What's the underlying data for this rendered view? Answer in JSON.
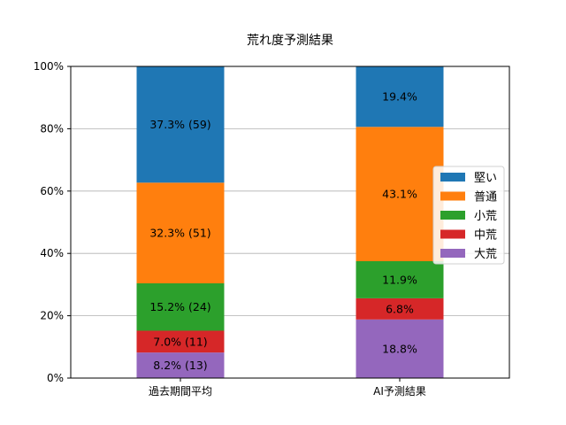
{
  "chart_data": {
    "type": "bar",
    "stacked": true,
    "title": "荒れ度予測結果",
    "xlabel": "",
    "ylabel": "",
    "categories": [
      "過去期間平均",
      "AI予測結果"
    ],
    "ylim": [
      0,
      100
    ],
    "yticks": [
      "0%",
      "20%",
      "40%",
      "60%",
      "80%",
      "100%"
    ],
    "grid": "y",
    "legend_position": "center-right",
    "series": [
      {
        "name": "大荒",
        "color": "#9467bd",
        "values": [
          8.2,
          18.8
        ],
        "labels": [
          "8.2% (13)",
          "18.8%"
        ]
      },
      {
        "name": "中荒",
        "color": "#d62728",
        "values": [
          7.0,
          6.8
        ],
        "labels": [
          "7.0% (11)",
          "6.8%"
        ]
      },
      {
        "name": "小荒",
        "color": "#2ca02c",
        "values": [
          15.2,
          11.9
        ],
        "labels": [
          "15.2% (24)",
          "11.9%"
        ]
      },
      {
        "name": "普通",
        "color": "#ff7f0e",
        "values": [
          32.3,
          43.1
        ],
        "labels": [
          "32.3% (51)",
          "43.1%"
        ]
      },
      {
        "name": "堅い",
        "color": "#1f77b4",
        "values": [
          37.3,
          19.4
        ],
        "labels": [
          "37.3% (59)",
          "19.4%"
        ]
      }
    ]
  }
}
